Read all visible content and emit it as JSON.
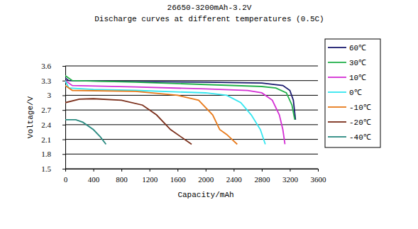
{
  "chart_data": {
    "type": "line",
    "title": "26650-3200mAh-3.2V",
    "subtitle": "Discharge curves at different temperatures (0.5C)",
    "x_label": "Capacity/mAh",
    "y_label": "Voltage/V",
    "xlim": [
      0,
      3600
    ],
    "xticks": [
      0,
      400,
      800,
      1200,
      1600,
      2000,
      2400,
      2800,
      3200,
      3600
    ],
    "ylim": [
      1.5,
      3.6
    ],
    "yticks": [
      1.5,
      1.8,
      2.1,
      2.4,
      2.7,
      3,
      3.3,
      3.6
    ],
    "grid": true,
    "legend": "right",
    "series": [
      {
        "name": "60℃",
        "color": "#1a1a6e",
        "x": [
          0,
          50,
          500,
          1000,
          2000,
          2800,
          3100,
          3200,
          3250,
          3280
        ],
        "values": [
          3.35,
          3.3,
          3.29,
          3.28,
          3.27,
          3.25,
          3.2,
          3.1,
          2.9,
          2.5
        ]
      },
      {
        "name": "30℃",
        "color": "#22b04a",
        "x": [
          0,
          100,
          1000,
          2000,
          2800,
          3000,
          3150,
          3230,
          3270
        ],
        "values": [
          3.4,
          3.3,
          3.27,
          3.22,
          3.18,
          3.15,
          3.05,
          2.8,
          2.5
        ]
      },
      {
        "name": "10℃",
        "color": "#d42fd4",
        "x": [
          0,
          100,
          1000,
          2000,
          2600,
          2800,
          2950,
          3050,
          3100,
          3130
        ],
        "values": [
          3.3,
          3.2,
          3.17,
          3.13,
          3.1,
          3.05,
          2.9,
          2.6,
          2.3,
          2.0
        ]
      },
      {
        "name": "0℃",
        "color": "#33e6f0",
        "x": [
          0,
          50,
          400,
          1000,
          2000,
          2300,
          2500,
          2650,
          2780,
          2850
        ],
        "values": [
          3.3,
          3.15,
          3.12,
          3.1,
          3.05,
          3.0,
          2.85,
          2.6,
          2.3,
          2.0
        ]
      },
      {
        "name": "-10℃",
        "color": "#e87a1a",
        "x": [
          0,
          100,
          1000,
          1600,
          1900,
          2100,
          2200,
          2300,
          2450
        ],
        "values": [
          3.2,
          3.1,
          3.08,
          3.0,
          2.9,
          2.6,
          2.3,
          2.2,
          2.0
        ]
      },
      {
        "name": "-20℃",
        "color": "#7a2e1a",
        "x": [
          0,
          200,
          400,
          800,
          1100,
          1300,
          1500,
          1650,
          1800
        ],
        "values": [
          2.85,
          2.92,
          2.93,
          2.9,
          2.8,
          2.6,
          2.3,
          2.15,
          2.0
        ]
      },
      {
        "name": "-40℃",
        "color": "#2a8a80",
        "x": [
          0,
          150,
          250,
          400,
          500,
          580
        ],
        "values": [
          2.5,
          2.5,
          2.45,
          2.3,
          2.15,
          2.0
        ]
      }
    ]
  }
}
